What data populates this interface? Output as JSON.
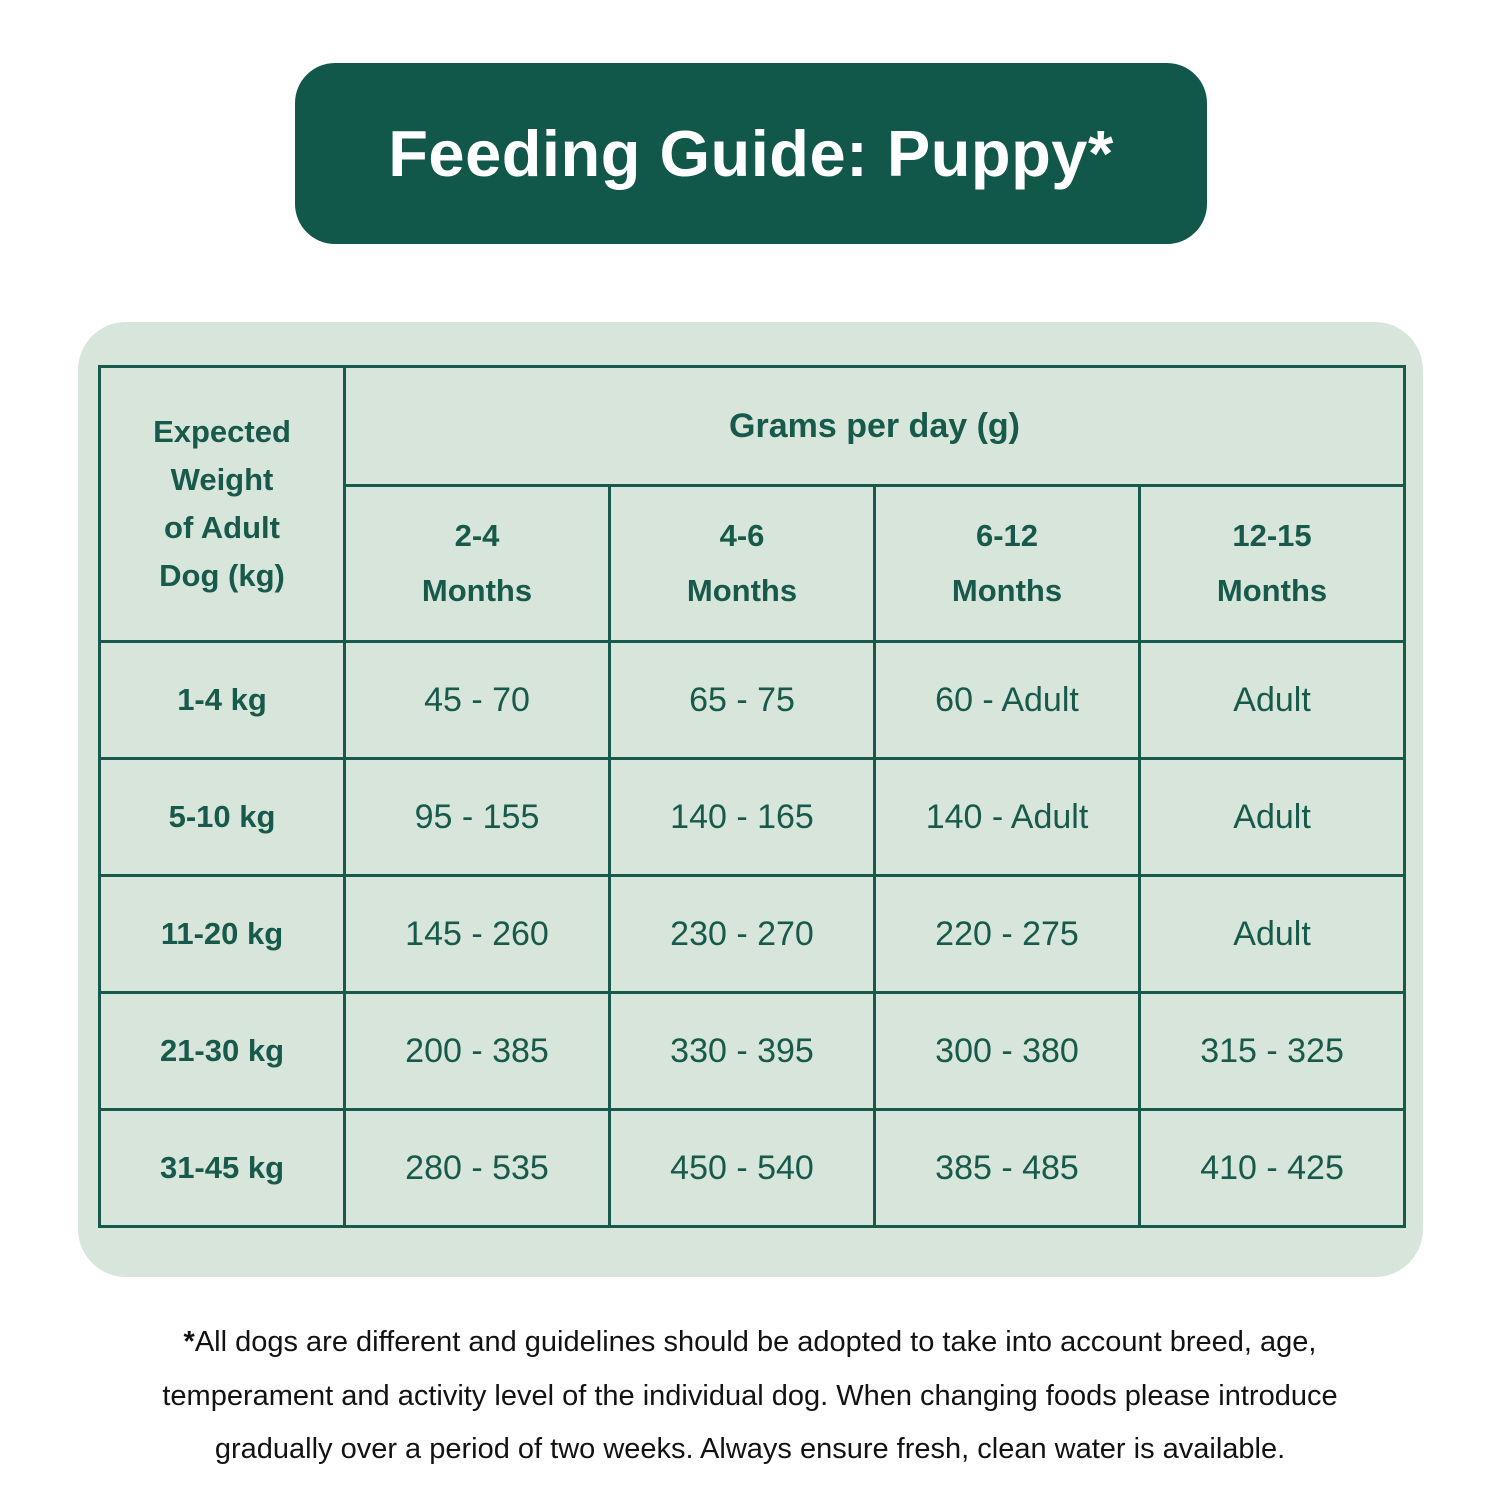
{
  "banner": {
    "title": "Feeding Guide: Puppy*",
    "bg_color": "#12584A",
    "text_color": "#FFFFFF"
  },
  "table": {
    "corner_header": "Expected\nWeight\nof Adult\nDog (kg)",
    "group_header": "Grams per day (g)",
    "column_headers": [
      "2-4\nMonths",
      "4-6\nMonths",
      "6-12\nMonths",
      "12-15\nMonths"
    ],
    "rows": [
      {
        "weight": "1-4 kg",
        "values": [
          "45 - 70",
          "65 - 75",
          "60 - Adult",
          "Adult"
        ]
      },
      {
        "weight": "5-10 kg",
        "values": [
          "95 - 155",
          "140 - 165",
          "140 - Adult",
          "Adult"
        ]
      },
      {
        "weight": "11-20 kg",
        "values": [
          "145 - 260",
          "230 - 270",
          "220 - 275",
          "Adult"
        ]
      },
      {
        "weight": "21-30 kg",
        "values": [
          "200 - 385",
          "330 - 395",
          "300 - 380",
          "315 - 325"
        ]
      },
      {
        "weight": "31-45 kg",
        "values": [
          "280 - 535",
          "450 - 540",
          "385 - 485",
          "410 - 425"
        ]
      }
    ],
    "panel_bg_color": "#D8E5DB",
    "border_color": "#17594A"
  },
  "footnote": {
    "asterisk": "*",
    "text": "All dogs are different and guidelines should be adopted to take into account breed, age,\ntemperament and activity level of the individual dog. When changing foods please introduce\ngradually over a period of two weeks. Always ensure fresh, clean water is available."
  }
}
